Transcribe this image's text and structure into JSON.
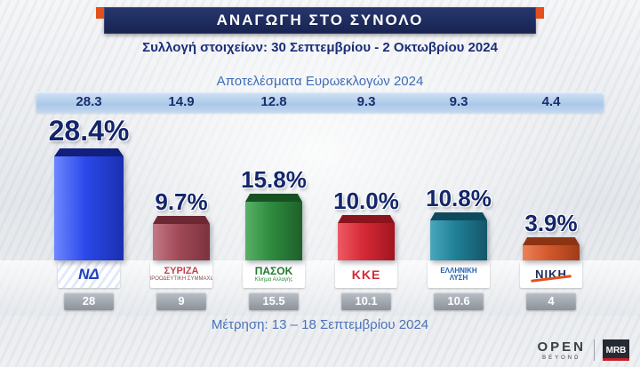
{
  "header": {
    "title": "ΑΝΑΓΩΓΗ ΣΤΟ ΣΥΝΟΛΟ",
    "bar_color": "#1c2a5e",
    "accent_color": "#e2501e"
  },
  "collection_line": "Συλλογή στοιχείων: 30 Σεπτεμβρίου - 2 Οκτωβρίου 2024",
  "euro_heading": "Αποτελέσματα Ευρωεκλογών 2024",
  "measurement_line": "Μέτρηση: 13 – 18 Σεπτεμβρίου 2024",
  "chart_data": {
    "type": "bar",
    "title": "ΑΝΑΓΩΓΗ ΣΤΟ ΣΥΝΟΛΟ",
    "categories": [
      "ΝΔ",
      "ΣΥΡΙΖΑ",
      "ΠΑΣΟΚ",
      "ΚΚΕ",
      "ΕΛΛΗΝΙΚΗ ΛΥΣΗ",
      "ΝΙΚΗ"
    ],
    "series": [
      {
        "name": "Αναγωγή στο σύνολο (Συλλογή στοιχείων: 30 Σεπτεμβρίου - 2 Οκτωβρίου 2024)",
        "values": [
          28.4,
          9.7,
          15.8,
          10.0,
          10.8,
          3.9
        ]
      },
      {
        "name": "Αποτελέσματα Ευρωεκλογών 2024",
        "values": [
          28.3,
          14.9,
          12.8,
          9.3,
          9.3,
          4.4
        ]
      },
      {
        "name": "Μέτρηση: 13 – 18 Σεπτεμβρίου 2024",
        "values": [
          28,
          9,
          15.5,
          10.1,
          10.6,
          4
        ]
      }
    ],
    "ylim": [
      0,
      30
    ],
    "grid": false,
    "legend_position": "none"
  },
  "parties": [
    {
      "id": "nd",
      "logo_text": "ΝΔ",
      "pct_label": "28.4%",
      "value": 28.4,
      "euro_value": "28.3",
      "prev_value": "28",
      "bar_color": "#2b49ea",
      "bar_light_color": "#6c86ff",
      "bar_dark_color": "#1a2fb0",
      "bar_top_color": "#111f7d",
      "logo_color": "#1e3fbe"
    },
    {
      "id": "syriza",
      "logo_text": "ΣΥΡΙΖΑ",
      "logo_sub": "ΠΡΟΟΔΕΥΤΙΚΗ ΣΥΜΜΑΧΙΑ",
      "pct_label": "9.7%",
      "value": 9.7,
      "euro_value": "14.9",
      "prev_value": "9",
      "bar_color": "#a04a57",
      "bar_light_color": "#c47985",
      "bar_dark_color": "#7c323e",
      "bar_top_color": "#6b2833",
      "logo_color": "#c2414b",
      "logo_sub_color": "#8a4a52"
    },
    {
      "id": "pasok",
      "logo_text": "ΠΑΣΟΚ",
      "logo_sub": "Κίνημα Αλλαγής",
      "pct_label": "15.8%",
      "value": 15.8,
      "euro_value": "12.8",
      "prev_value": "15.5",
      "bar_color": "#2e8b3e",
      "bar_light_color": "#58b066",
      "bar_dark_color": "#1d6029",
      "bar_top_color": "#175122",
      "logo_color": "#1f7a30",
      "logo_sub_color": "#2e8b3e"
    },
    {
      "id": "kke",
      "logo_text": "ΚΚΕ",
      "pct_label": "10.0%",
      "value": 10.0,
      "euro_value": "9.3",
      "prev_value": "10.1",
      "bar_color": "#d52936",
      "bar_light_color": "#ee5a63",
      "bar_dark_color": "#a01620",
      "bar_top_color": "#8c121b",
      "logo_color": "#d52936"
    },
    {
      "id": "ellysi",
      "logo_text": "ΕΛΛΗΝΙΚΗ ΛΥΣΗ",
      "pct_label": "10.8%",
      "value": 10.8,
      "euro_value": "9.3",
      "prev_value": "10.6",
      "bar_color": "#1f7f96",
      "bar_light_color": "#4aa7bc",
      "bar_dark_color": "#14566a",
      "bar_top_color": "#0f4a5c",
      "logo_color": "#1f5fae"
    },
    {
      "id": "niki",
      "logo_text": "ΝΙΚΗ",
      "pct_label": "3.9%",
      "value": 3.9,
      "euro_value": "4.4",
      "prev_value": "4",
      "bar_color": "#d4582c",
      "bar_light_color": "#ec8257",
      "bar_dark_color": "#a03c17",
      "bar_top_color": "#8c3412",
      "logo_color": "#1c2b5e"
    }
  ],
  "branding": {
    "open_label": "OPEN",
    "open_sub": "BEYOND",
    "mrb_label": "MRB"
  }
}
